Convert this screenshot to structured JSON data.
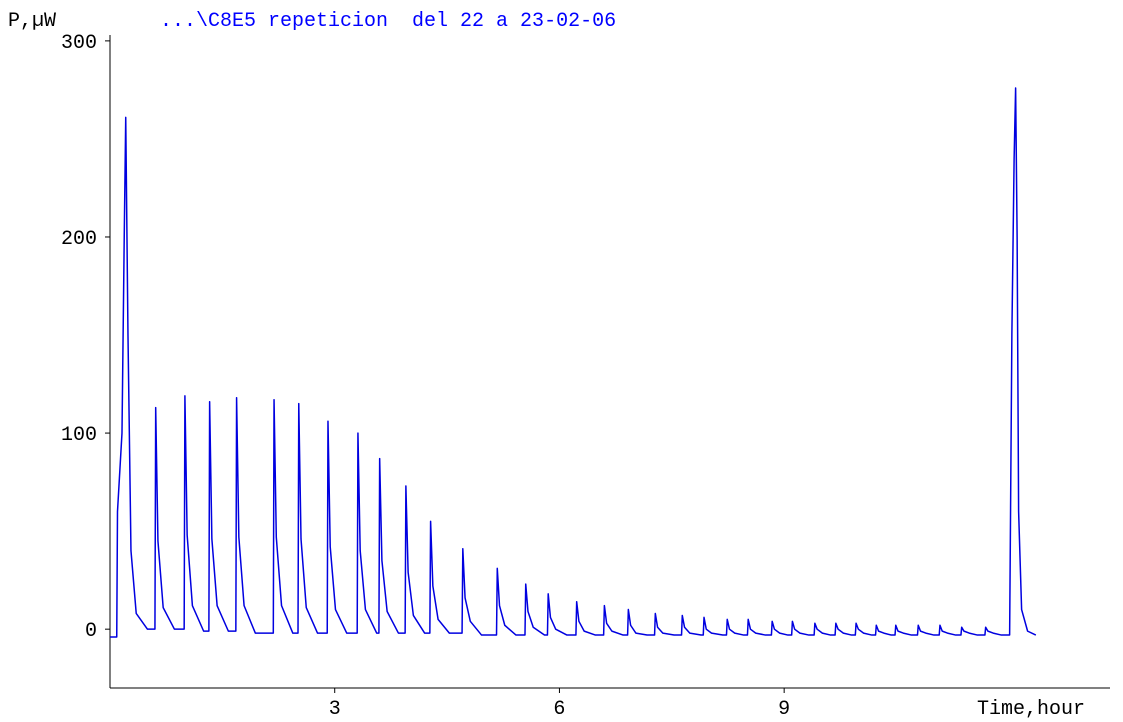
{
  "chart_data": {
    "type": "line",
    "title": "...\\C8E5 repeticion  del 22 a 23-02-06",
    "y_label": "P,µW",
    "x_label": "Time,hour",
    "color": "#0000e0",
    "xlim": [
      0,
      13.35
    ],
    "ylim": [
      -30,
      303
    ],
    "xticks": [
      3,
      6,
      9
    ],
    "yticks": [
      0,
      100,
      200,
      300
    ],
    "x": [
      0,
      0.09,
      0.1,
      0.16,
      0.19,
      0.21,
      0.24,
      0.28,
      0.35,
      0.5,
      0.6,
      0.61,
      0.64,
      0.71,
      0.86,
      0.99,
      1.0,
      1.03,
      1.1,
      1.25,
      1.32,
      1.33,
      1.36,
      1.43,
      1.58,
      1.68,
      1.69,
      1.72,
      1.79,
      1.94,
      2.18,
      2.19,
      2.22,
      2.29,
      2.44,
      2.51,
      2.52,
      2.55,
      2.62,
      2.77,
      2.9,
      2.91,
      2.94,
      3.01,
      3.16,
      3.3,
      3.31,
      3.34,
      3.41,
      3.56,
      3.59,
      3.6,
      3.63,
      3.7,
      3.85,
      3.94,
      3.95,
      3.98,
      4.05,
      4.2,
      4.27,
      4.28,
      4.31,
      4.38,
      4.53,
      4.7,
      4.71,
      4.74,
      4.81,
      4.96,
      5.16,
      5.17,
      5.2,
      5.27,
      5.42,
      5.54,
      5.55,
      5.58,
      5.65,
      5.8,
      5.84,
      5.85,
      5.88,
      5.95,
      6.1,
      6.22,
      6.23,
      6.26,
      6.33,
      6.48,
      6.59,
      6.6,
      6.63,
      6.7,
      6.85,
      6.91,
      6.92,
      6.95,
      7.02,
      7.17,
      7.27,
      7.28,
      7.31,
      7.38,
      7.53,
      7.63,
      7.64,
      7.67,
      7.74,
      7.89,
      7.92,
      7.93,
      7.96,
      8.03,
      8.18,
      8.23,
      8.24,
      8.27,
      8.34,
      8.46,
      8.51,
      8.52,
      8.55,
      8.62,
      8.75,
      8.83,
      8.84,
      8.87,
      8.94,
      9.05,
      9.1,
      9.11,
      9.14,
      9.21,
      9.33,
      9.4,
      9.41,
      9.44,
      9.51,
      9.62,
      9.68,
      9.69,
      9.72,
      9.79,
      9.9,
      9.95,
      9.96,
      9.99,
      10.06,
      10.17,
      10.22,
      10.23,
      10.26,
      10.33,
      10.43,
      10.48,
      10.49,
      10.52,
      10.59,
      10.7,
      10.78,
      10.79,
      10.82,
      10.89,
      11.0,
      11.07,
      11.08,
      11.11,
      11.18,
      11.29,
      11.36,
      11.37,
      11.4,
      11.47,
      11.58,
      11.68,
      11.69,
      11.72,
      11.79,
      11.9,
      12.01,
      12.04,
      12.07,
      12.09,
      12.11,
      12.13,
      12.17,
      12.25,
      12.36
    ],
    "values": [
      -4,
      -4,
      60,
      100,
      200,
      261,
      150,
      40,
      8,
      0,
      0,
      113,
      45,
      11,
      0,
      0,
      119,
      48,
      12,
      -1,
      -1,
      116,
      46,
      12,
      -1,
      -1,
      118,
      47,
      12,
      -2,
      -2,
      117,
      47,
      12,
      -2,
      -2,
      115,
      46,
      11,
      -2,
      -2,
      106,
      42,
      10,
      -2,
      -2,
      100,
      40,
      10,
      -2,
      -2,
      87,
      35,
      9,
      -2,
      -2,
      73,
      29,
      7,
      -2,
      -2,
      55,
      22,
      5,
      -2,
      -2,
      41,
      16,
      4,
      -3,
      -3,
      31,
      12,
      2,
      -3,
      -3,
      23,
      9,
      1,
      -3,
      -3,
      18,
      6,
      0,
      -3,
      -3,
      14,
      4,
      -1,
      -3,
      -3,
      12,
      3,
      -1,
      -3,
      -3,
      10,
      2,
      -2,
      -3,
      -3,
      8,
      1,
      -2,
      -3,
      -3,
      7,
      1,
      -2,
      -3,
      -3,
      6,
      0,
      -2,
      -3,
      -3,
      5,
      0,
      -2,
      -3,
      -3,
      5,
      0,
      -2,
      -3,
      -3,
      4,
      0,
      -2,
      -3,
      -3,
      4,
      0,
      -2,
      -3,
      -3,
      3,
      0,
      -2,
      -3,
      -3,
      3,
      0,
      -2,
      -3,
      -3,
      3,
      0,
      -2,
      -3,
      -3,
      2,
      -1,
      -2,
      -3,
      -3,
      2,
      -1,
      -2,
      -3,
      -3,
      2,
      -1,
      -2,
      -3,
      -3,
      2,
      -1,
      -2,
      -3,
      -3,
      1,
      -1,
      -2,
      -3,
      -3,
      1,
      -1,
      -2,
      -3,
      -3,
      150,
      240,
      276,
      200,
      60,
      10,
      -1,
      -3
    ]
  }
}
